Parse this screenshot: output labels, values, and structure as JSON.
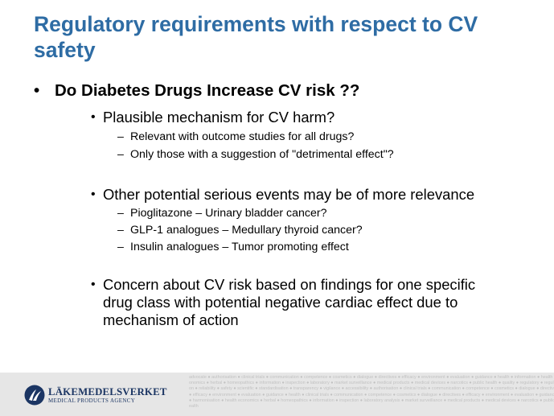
{
  "slide": {
    "title": "Regulatory requirements with respect to CV safety",
    "main_bullet": "Do Diabetes Drugs Increase CV risk ??",
    "bullet_glyph": "•",
    "dash_glyph": "–",
    "sections": [
      {
        "text": "Plausible mechanism for CV harm?",
        "subs": [
          "Relevant with outcome studies for all drugs?",
          "Only those with a suggestion of \"detrimental  effect\"?"
        ]
      },
      {
        "text": "Other potential serious events may be of more relevance",
        "subs": [
          "Pioglitazone – Urinary bladder cancer?",
          "GLP-1 analogues – Medullary thyroid cancer?",
          "Insulin analogues – Tumor promoting effect"
        ]
      },
      {
        "text": "Concern about CV risk based on findings for one specific drug class with potential negative  cardiac effect due to mechanism of action",
        "subs": []
      }
    ]
  },
  "footer": {
    "brand": "LÄKEMEDELSVERKET",
    "brand_sub": "MEDICAL PRODUCTS AGENCY",
    "logo_icon": "lakemedelsverket-logo-icon",
    "logo_color": "#1b3563",
    "watermark_text": "advocate ● authorisation ● clinical trials ● communication ● competence ● cosmetics ● dialogue ● directives ● efficacy ● environment ● evaluation ● guidance ● health ● information ● health economics ● herbal ● homeopathics ● information ● inspection ● laboratory ● market surveillance ● medical products ● medical devices ● narcotics ● public health ● quality ● regulatory ● regulation ● reliability ● safety ● scientific ● standardisation ● transparency ● vigilance ● accessibility ● authorisation ● clinical trials ● communication ● competence ● cosmetics ● dialogue ● directives ● efficacy ● environment ● evaluation ● guidance ● health ● clinical trials ● communication ● competence ● cosmetics ● dialogue ● directives ● efficacy ● environment ● evaluation ● guidance ● harmonisation ● health economics ● herbal ● homeopathics ● information ● inspection ● laboratory analysis ● market surveillance ● medical products ● medical devices ● narcotics ● public health"
  },
  "colors": {
    "title": "#2e6ca4",
    "footer_bg": "#e6e6e6",
    "watermark": "#c2c2c2"
  }
}
